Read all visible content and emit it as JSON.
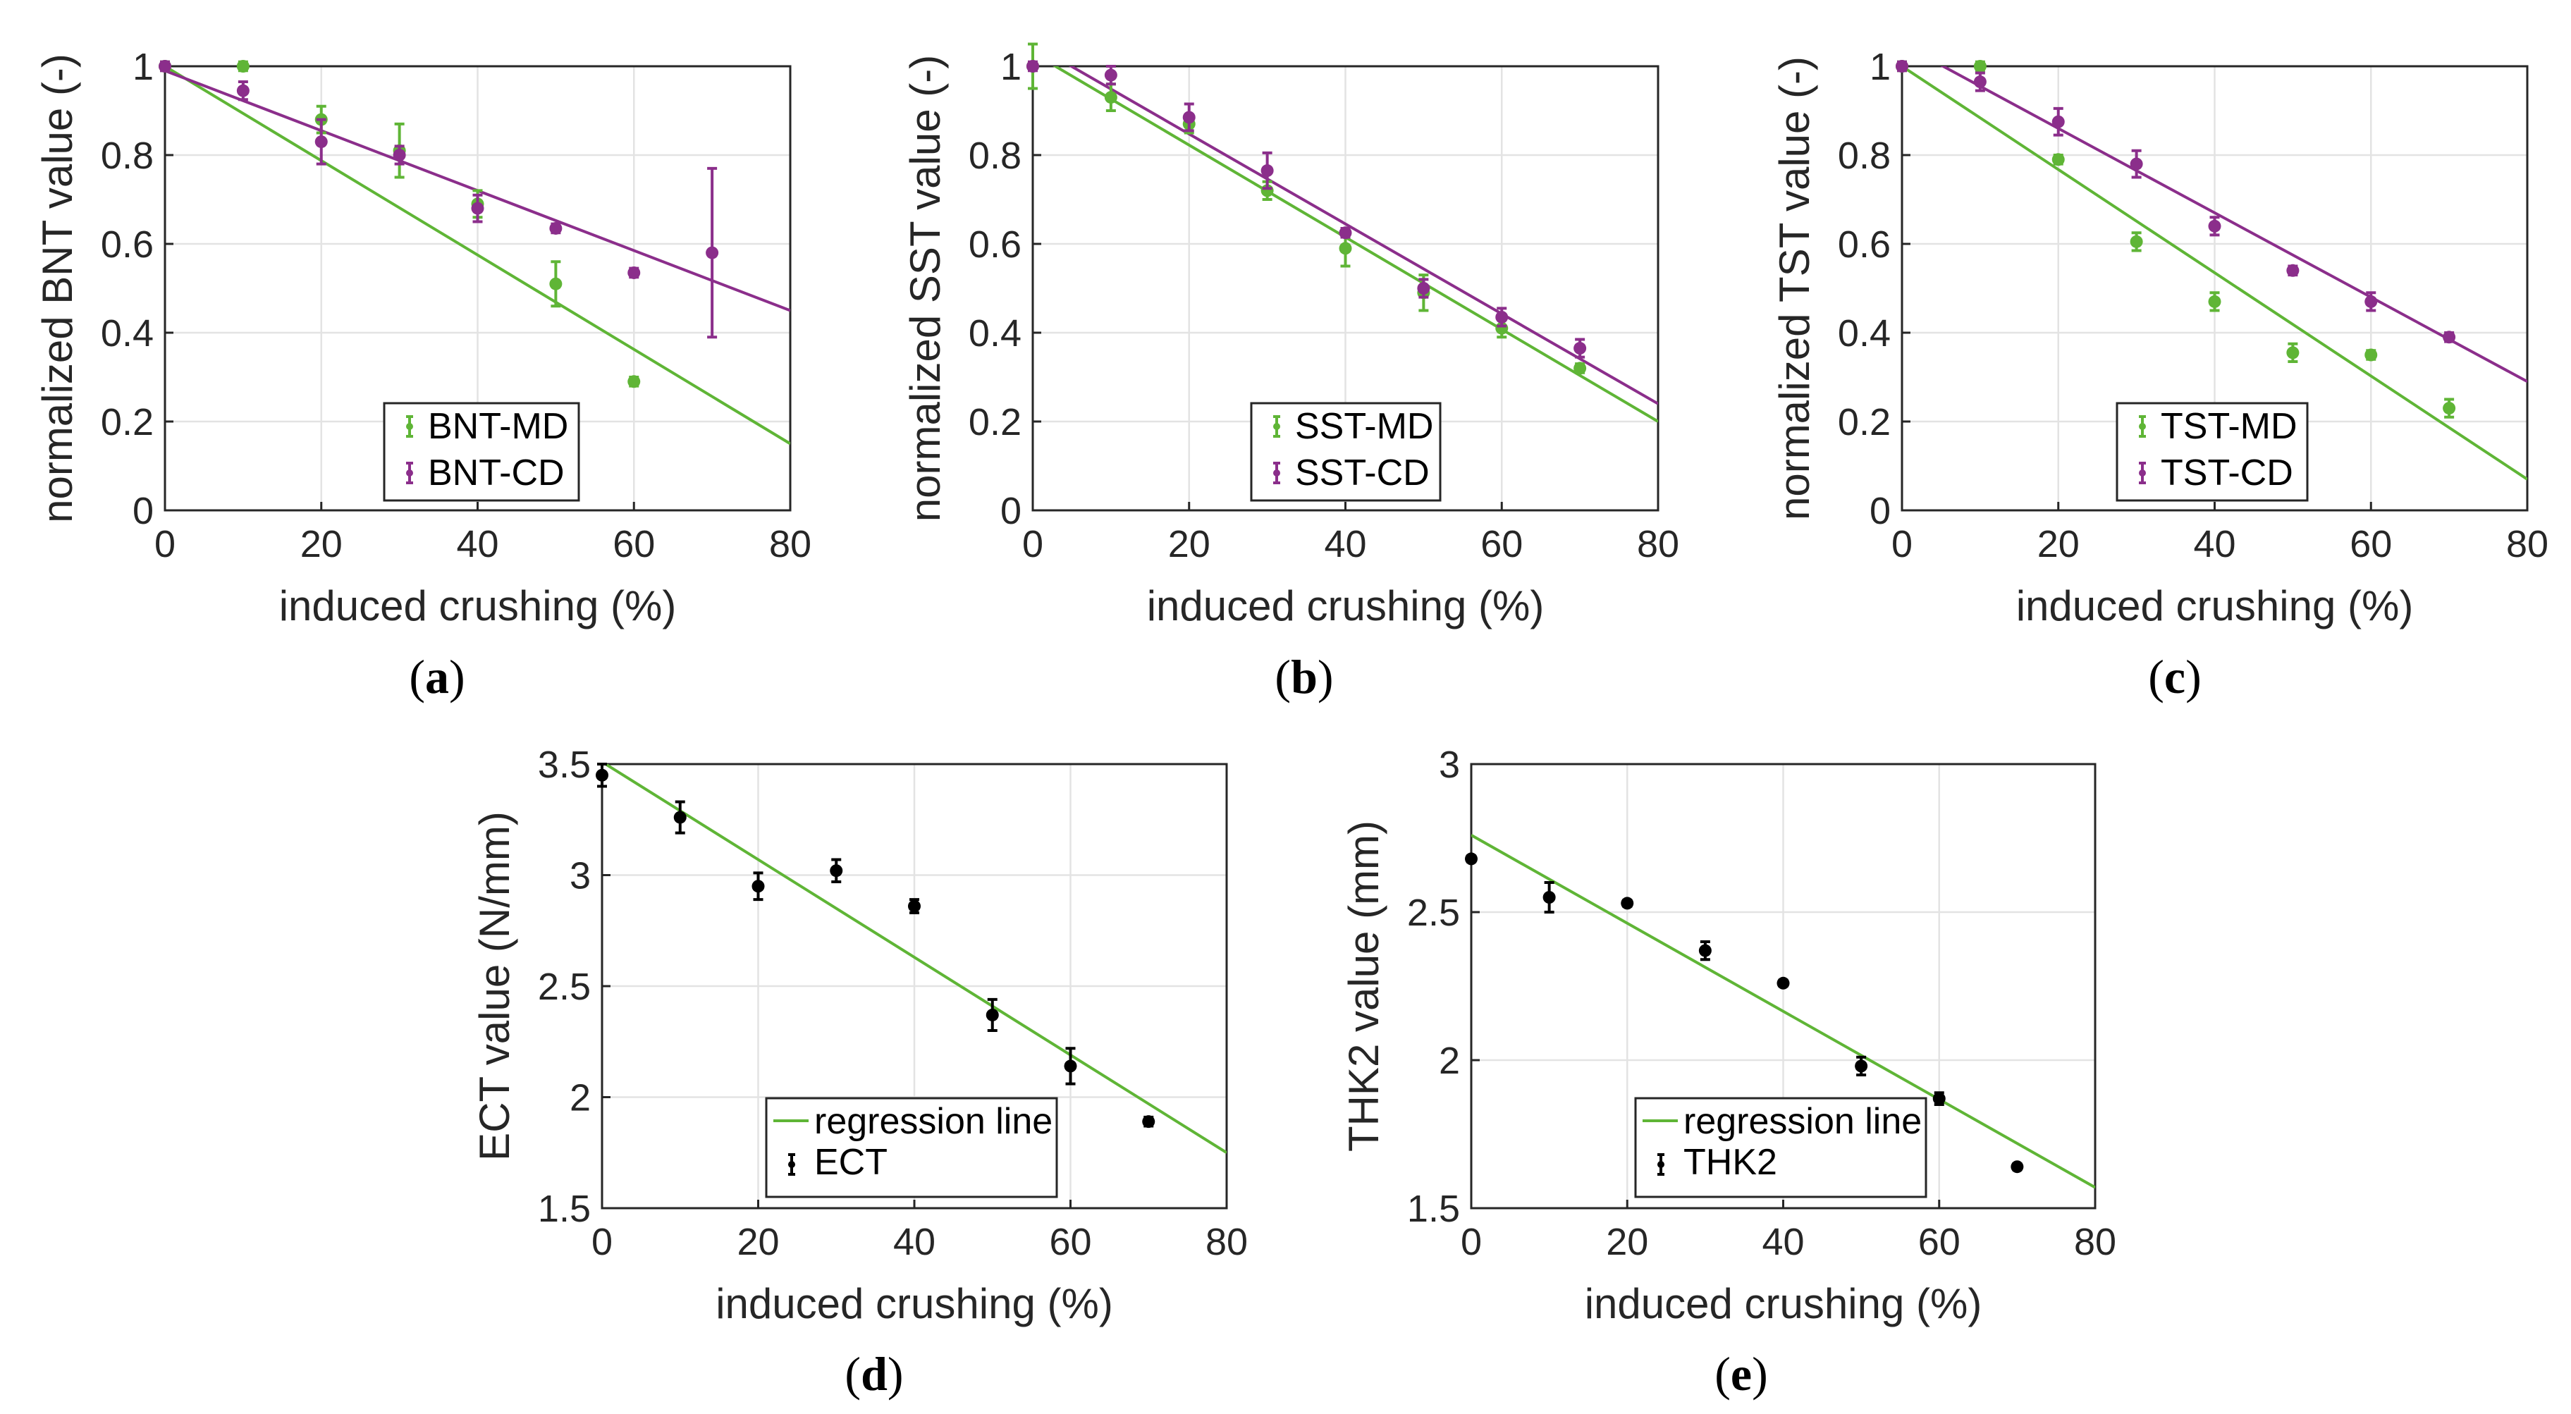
{
  "chart_data": [
    {
      "id": "a",
      "type": "scatter",
      "panel_label": "a",
      "xlabel": "induced crushing (%)",
      "ylabel": "normalized BNT value (-)",
      "xlim": [
        0,
        80
      ],
      "ylim": [
        0,
        1
      ],
      "xticks": [
        0,
        20,
        40,
        60,
        80
      ],
      "yticks": [
        0,
        0.2,
        0.4,
        0.6,
        0.8,
        1
      ],
      "ytick_labels": [
        "0",
        "0.2",
        "0.4",
        "0.6",
        "0.8",
        "1"
      ],
      "grid": true,
      "legend_position": "bottom-center",
      "series": [
        {
          "name": "BNT-MD",
          "color": "#5fb536",
          "x": [
            0,
            10,
            20,
            30,
            40,
            50,
            60,
            70
          ],
          "y": [
            1.0,
            1.0,
            0.88,
            0.81,
            0.69,
            0.51,
            0.29,
            null
          ],
          "err": [
            0.01,
            0.01,
            0.03,
            0.06,
            0.03,
            0.05,
            0.01,
            null
          ],
          "fit": [
            1.0,
            0.15
          ]
        },
        {
          "name": "BNT-CD",
          "color": "#8b2e8b",
          "x": [
            0,
            10,
            20,
            30,
            40,
            50,
            60,
            70
          ],
          "y": [
            1.0,
            0.945,
            0.83,
            0.8,
            0.68,
            0.635,
            0.535,
            0.58
          ],
          "err": [
            0.01,
            0.02,
            0.05,
            0.02,
            0.03,
            0.01,
            0.01,
            0.19
          ],
          "fit": [
            0.99,
            0.45
          ]
        }
      ]
    },
    {
      "id": "b",
      "type": "scatter",
      "panel_label": "b",
      "xlabel": "induced crushing (%)",
      "ylabel": "normalized SST value (-)",
      "xlim": [
        0,
        80
      ],
      "ylim": [
        0,
        1
      ],
      "xticks": [
        0,
        20,
        40,
        60,
        80
      ],
      "yticks": [
        0,
        0.2,
        0.4,
        0.6,
        0.8,
        1
      ],
      "ytick_labels": [
        "0",
        "0.2",
        "0.4",
        "0.6",
        "0.8",
        "1"
      ],
      "grid": true,
      "legend_position": "bottom-center",
      "series": [
        {
          "name": "SST-MD",
          "color": "#5fb536",
          "x": [
            0,
            10,
            20,
            30,
            40,
            50,
            60,
            70
          ],
          "y": [
            1.0,
            0.93,
            0.87,
            0.72,
            0.59,
            0.49,
            0.41,
            0.32
          ],
          "err": [
            0.05,
            0.03,
            0.02,
            0.02,
            0.04,
            0.04,
            0.02,
            0.01
          ],
          "fit": [
            1.03,
            0.2
          ]
        },
        {
          "name": "SST-CD",
          "color": "#8b2e8b",
          "x": [
            0,
            10,
            20,
            30,
            40,
            50,
            60,
            70
          ],
          "y": [
            1.0,
            0.98,
            0.885,
            0.765,
            0.625,
            0.5,
            0.435,
            0.365
          ],
          "err": [
            0.01,
            0.02,
            0.03,
            0.04,
            0.01,
            0.02,
            0.02,
            0.02
          ],
          "fit": [
            1.05,
            0.24
          ]
        }
      ]
    },
    {
      "id": "c",
      "type": "scatter",
      "panel_label": "c",
      "xlabel": "induced crushing (%)",
      "ylabel": "normalized TST value (-)",
      "xlim": [
        0,
        80
      ],
      "ylim": [
        0,
        1
      ],
      "xticks": [
        0,
        20,
        40,
        60,
        80
      ],
      "yticks": [
        0,
        0.2,
        0.4,
        0.6,
        0.8,
        1
      ],
      "ytick_labels": [
        "0",
        "0.2",
        "0.4",
        "0.6",
        "0.8",
        "1"
      ],
      "grid": true,
      "legend_position": "bottom-center",
      "series": [
        {
          "name": "TST-MD",
          "color": "#5fb536",
          "x": [
            0,
            10,
            20,
            30,
            40,
            50,
            60,
            70
          ],
          "y": [
            1.0,
            1.0,
            0.79,
            0.605,
            0.47,
            0.355,
            0.35,
            0.23
          ],
          "err": [
            0.01,
            0.01,
            0.01,
            0.02,
            0.02,
            0.02,
            0.01,
            0.02
          ],
          "fit": [
            1.0,
            0.07
          ]
        },
        {
          "name": "TST-CD",
          "color": "#8b2e8b",
          "x": [
            0,
            10,
            20,
            30,
            40,
            50,
            60,
            70
          ],
          "y": [
            1.0,
            0.965,
            0.875,
            0.78,
            0.64,
            0.54,
            0.47,
            0.39
          ],
          "err": [
            0.01,
            0.02,
            0.03,
            0.03,
            0.02,
            0.01,
            0.02,
            0.01
          ],
          "fit": [
            1.05,
            0.29
          ]
        }
      ]
    },
    {
      "id": "d",
      "type": "scatter",
      "panel_label": "d",
      "xlabel": "induced crushing (%)",
      "ylabel": "ECT value (N/mm)",
      "xlim": [
        0,
        80
      ],
      "ylim": [
        1.5,
        3.5
      ],
      "xticks": [
        0,
        20,
        40,
        60,
        80
      ],
      "yticks": [
        1.5,
        2,
        2.5,
        3,
        3.5
      ],
      "ytick_labels": [
        "1.5",
        "2",
        "2.5",
        "3",
        "3.5"
      ],
      "grid": true,
      "legend_position": "bottom-right",
      "legend_line": "regression line",
      "line_color": "#5fb536",
      "series": [
        {
          "name": "ECT",
          "color": "#000000",
          "x": [
            0,
            10,
            20,
            30,
            40,
            50,
            60,
            70
          ],
          "y": [
            3.45,
            3.26,
            2.95,
            3.02,
            2.86,
            2.37,
            2.14,
            1.89
          ],
          "err": [
            0.05,
            0.07,
            0.06,
            0.05,
            0.03,
            0.07,
            0.08,
            0.02
          ],
          "fit": [
            3.51,
            1.75
          ]
        }
      ]
    },
    {
      "id": "e",
      "type": "scatter",
      "panel_label": "e",
      "xlabel": "induced crushing (%)",
      "ylabel": "THK2 value (mm)",
      "xlim": [
        0,
        80
      ],
      "ylim": [
        1.5,
        3
      ],
      "xticks": [
        0,
        20,
        40,
        60,
        80
      ],
      "yticks": [
        1.5,
        2,
        2.5,
        3
      ],
      "ytick_labels": [
        "1.5",
        "2",
        "2.5",
        "3"
      ],
      "grid": true,
      "legend_position": "bottom-right",
      "legend_line": "regression line",
      "line_color": "#5fb536",
      "series": [
        {
          "name": "THK2",
          "color": "#000000",
          "x": [
            0,
            10,
            20,
            30,
            40,
            50,
            60,
            70
          ],
          "y": [
            2.68,
            2.55,
            2.53,
            2.37,
            2.26,
            1.98,
            1.87,
            1.64
          ],
          "err": [
            0.01,
            0.05,
            0.01,
            0.03,
            0.01,
            0.03,
            0.02,
            0.01
          ],
          "fit": [
            2.76,
            1.57
          ]
        }
      ]
    }
  ]
}
